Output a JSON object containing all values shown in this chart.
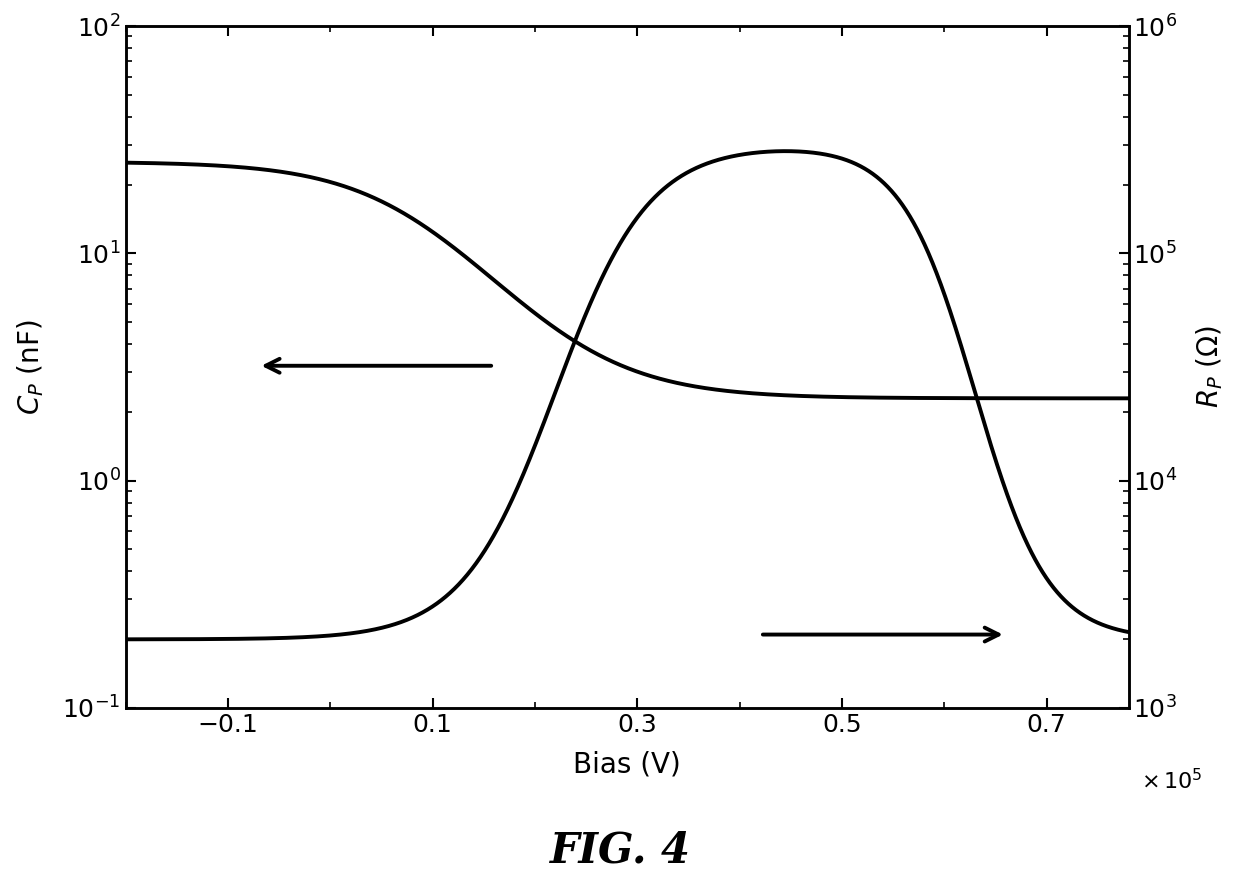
{
  "title": "FIG. 4",
  "xlabel": "Bias (V)",
  "ylabel_left": "$C_P$ (nF)",
  "ylabel_right": "$R_P$ ($\\Omega$)",
  "x_min": -0.2,
  "x_max": 0.78,
  "x_ticks": [
    -0.1,
    0.1,
    0.3,
    0.5,
    0.7
  ],
  "cp_ylim": [
    0.1,
    100
  ],
  "rp_ylim": [
    1000,
    1000000
  ],
  "background_color": "#ffffff",
  "line_color": "#000000",
  "line_width": 2.8
}
